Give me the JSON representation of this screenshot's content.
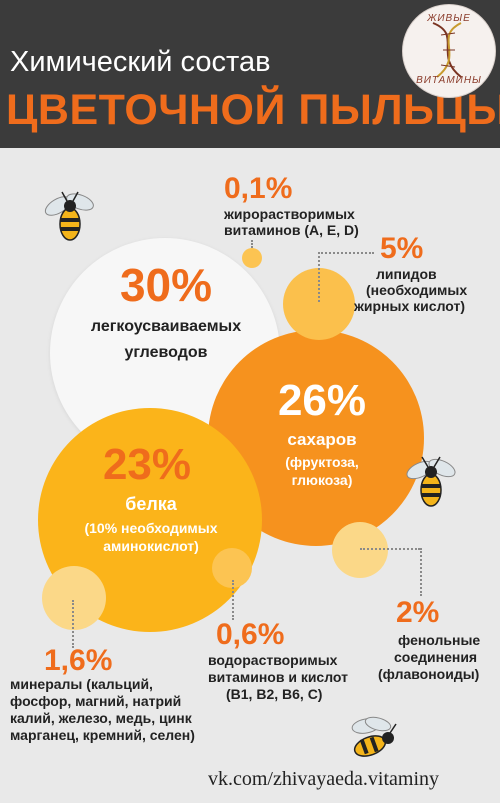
{
  "header": {
    "title_line1": "Химический состав",
    "title_line2": "ЦВЕТОЧНОЙ ПЫЛЬЦЫ",
    "logo_top": "ЖИВЫЕ",
    "logo_bottom": "ВИТАМИНЫ"
  },
  "items": {
    "carbs": {
      "value": "30%",
      "label_1": "легкоусваиваемых",
      "label_2": "углеводов"
    },
    "sugars": {
      "value": "26%",
      "label_1": "сахаров",
      "label_2": "(фруктоза,",
      "label_3": "глюкоза)"
    },
    "proteins": {
      "value": "23%",
      "label_1": "белка",
      "label_2": "(10% необходимых",
      "label_3": "аминокислот)"
    },
    "fat_vitamins": {
      "value": "0,1%",
      "label_1": "жирорастворимых",
      "label_2": "витаминов (А, Е, D)"
    },
    "lipids": {
      "value": "5%",
      "label_1": "липидов",
      "label_2": "(необходимых",
      "label_3": "жирных кислот)"
    },
    "minerals": {
      "value": "1,6%",
      "label_1": "минералы (кальций,",
      "label_2": "фосфор, магний, натрий",
      "label_3": "калий, железо, медь, цинк",
      "label_4": "марганец, кремний, селен)"
    },
    "water_vitamins": {
      "value": "0,6%",
      "label_1": "водорастворимых",
      "label_2": "витаминов и кислот",
      "label_3": "(В1, В2, В6, С)"
    },
    "phenols": {
      "value": "2%",
      "label_1": "фенольные",
      "label_2": "соединения",
      "label_3": "(флавоноиды)"
    }
  },
  "footer": {
    "link": "vk.com/zhivayaeda.vitaminy"
  },
  "colors": {
    "header_bg": "#3b3b3b",
    "accent": "#ef6c1c",
    "white_circle": "#f7f7f7",
    "sugar_circle": "#f6921e",
    "protein_circle": "#fbb41a",
    "small_circle": "#fcc452"
  },
  "icons": [
    "bee-icon",
    "logo-dna-icon"
  ]
}
